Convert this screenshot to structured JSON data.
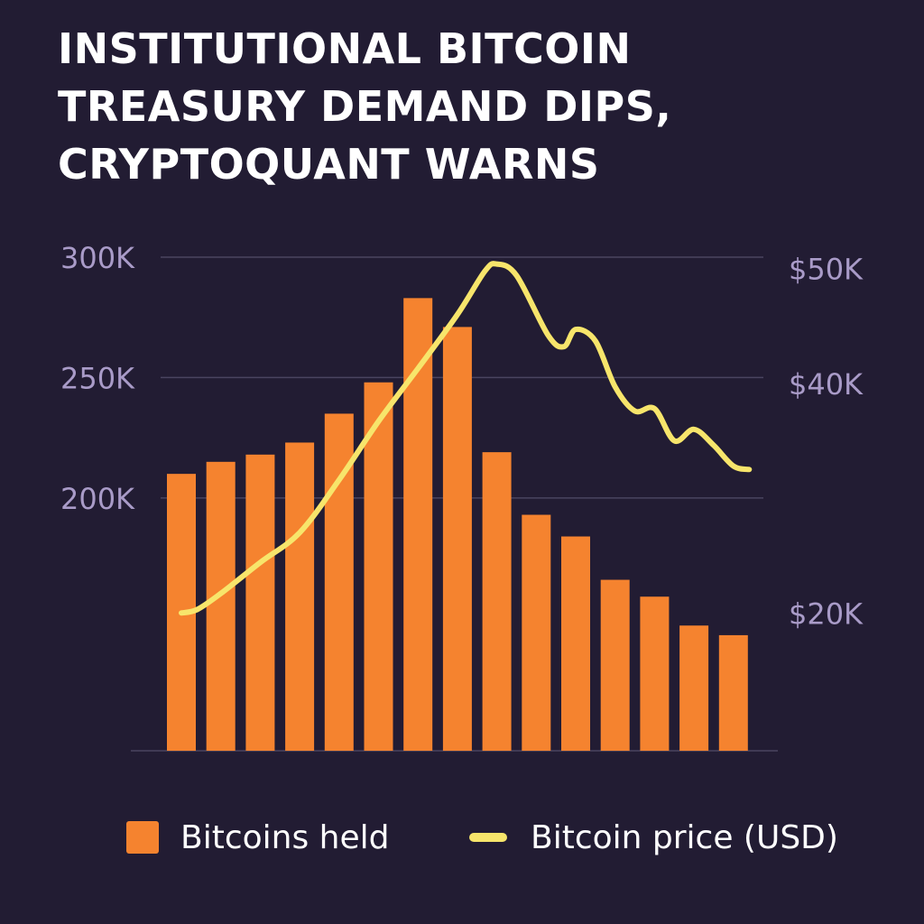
{
  "title_lines": [
    "INSTITUTIONAL BITCOIN",
    "TREASURY DEMAND DIPS,",
    "CRYPTOQUANT WARNS"
  ],
  "colors": {
    "background": "#221c33",
    "bars": "#f5832f",
    "line": "#f7e56b",
    "tick_labels": "#a99bc8",
    "grid": "#4a4460"
  },
  "chart_data": {
    "type": "bar",
    "title": "INSTITUTIONAL BITCOIN TREASURY DEMAND DIPS, CRYPTOQUANT WARNS",
    "grid": true,
    "legend_position": "bottom",
    "y_left": {
      "ticks": [
        {
          "value": 200000,
          "label": "200K"
        },
        {
          "value": 250000,
          "label": "250K"
        },
        {
          "value": 300000,
          "label": "300K"
        }
      ],
      "range": [
        95000,
        300000
      ]
    },
    "y_right": {
      "ticks": [
        {
          "value": 20000,
          "label": "$20K"
        },
        {
          "value": 40000,
          "label": "$40K"
        },
        {
          "value": 50000,
          "label": "$50K"
        }
      ],
      "range": [
        8000,
        51000
      ]
    },
    "series": [
      {
        "name": "Bitcoins held",
        "type": "bar",
        "axis": "left",
        "values": [
          210000,
          215000,
          218000,
          223000,
          235000,
          248000,
          283000,
          271000,
          219000,
          193000,
          184000,
          166000,
          159000,
          147000,
          143000
        ]
      },
      {
        "name": "Bitcoin price (USD)",
        "type": "line",
        "axis": "right",
        "points": [
          [
            0,
            20000
          ],
          [
            0.4,
            20300
          ],
          [
            1.0,
            21700
          ],
          [
            2.0,
            24400
          ],
          [
            3.0,
            27000
          ],
          [
            4.0,
            31600
          ],
          [
            5.0,
            36700
          ],
          [
            6.0,
            41300
          ],
          [
            7.0,
            46000
          ],
          [
            7.7,
            49800
          ],
          [
            8.0,
            50400
          ],
          [
            8.5,
            49400
          ],
          [
            9.3,
            44200
          ],
          [
            9.7,
            43200
          ],
          [
            10.0,
            44700
          ],
          [
            10.5,
            43700
          ],
          [
            11.0,
            39700
          ],
          [
            11.5,
            37600
          ],
          [
            12.0,
            37800
          ],
          [
            12.5,
            35000
          ],
          [
            13.0,
            36000
          ],
          [
            13.5,
            34600
          ],
          [
            14.0,
            32800
          ],
          [
            14.4,
            32500
          ]
        ]
      }
    ]
  }
}
